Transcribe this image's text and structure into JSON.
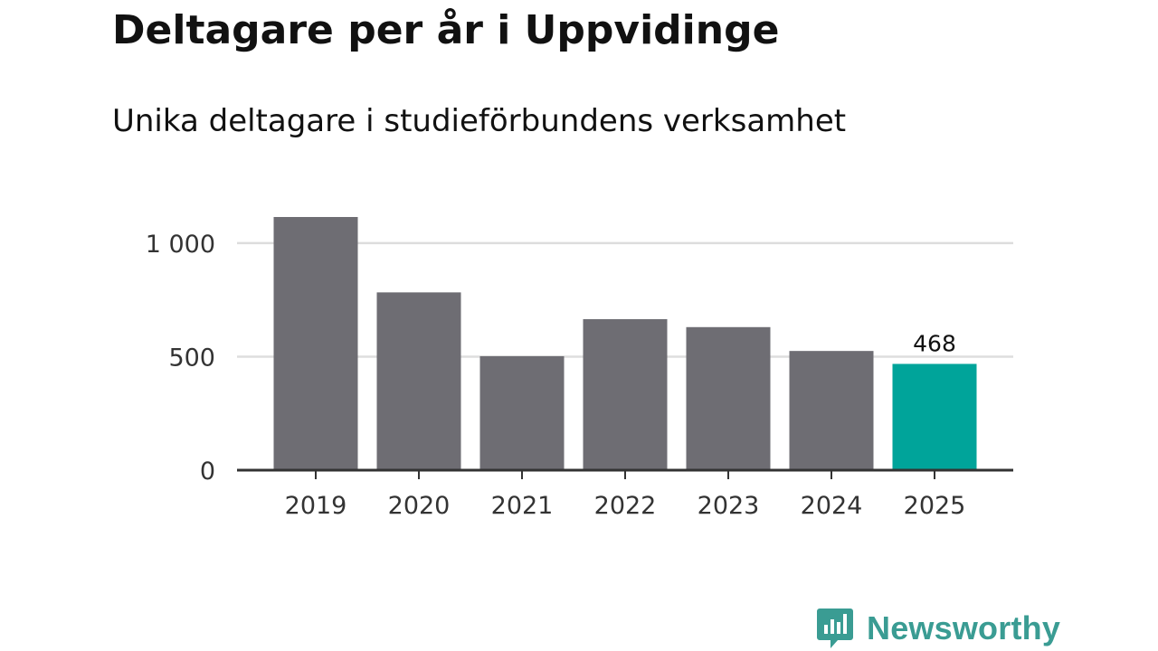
{
  "header": {
    "title": "Deltagare per år i Uppvidinge",
    "subtitle": "Unika deltagare i studieförbundens verksamhet"
  },
  "brand": {
    "name": "Newsworthy",
    "color": "#3a9c93"
  },
  "colors": {
    "bar": "#6e6d73",
    "highlight": "#00a49a",
    "grid": "#dddddd",
    "axis": "#333333"
  },
  "chart_data": {
    "type": "bar",
    "title": "Deltagare per år i Uppvidinge",
    "subtitle": "Unika deltagare i studieförbundens verksamhet",
    "xlabel": "",
    "ylabel": "",
    "categories": [
      "2019",
      "2020",
      "2021",
      "2022",
      "2023",
      "2024",
      "2025"
    ],
    "values": [
      1115,
      783,
      502,
      665,
      630,
      525,
      468
    ],
    "highlight_index": 6,
    "data_labels": [
      {
        "index": 6,
        "text": "468"
      }
    ],
    "yticks": [
      0,
      500,
      1000
    ],
    "ytick_labels": [
      "0",
      "500",
      "1 000"
    ],
    "ylim": [
      0,
      1115
    ],
    "grid": true
  }
}
